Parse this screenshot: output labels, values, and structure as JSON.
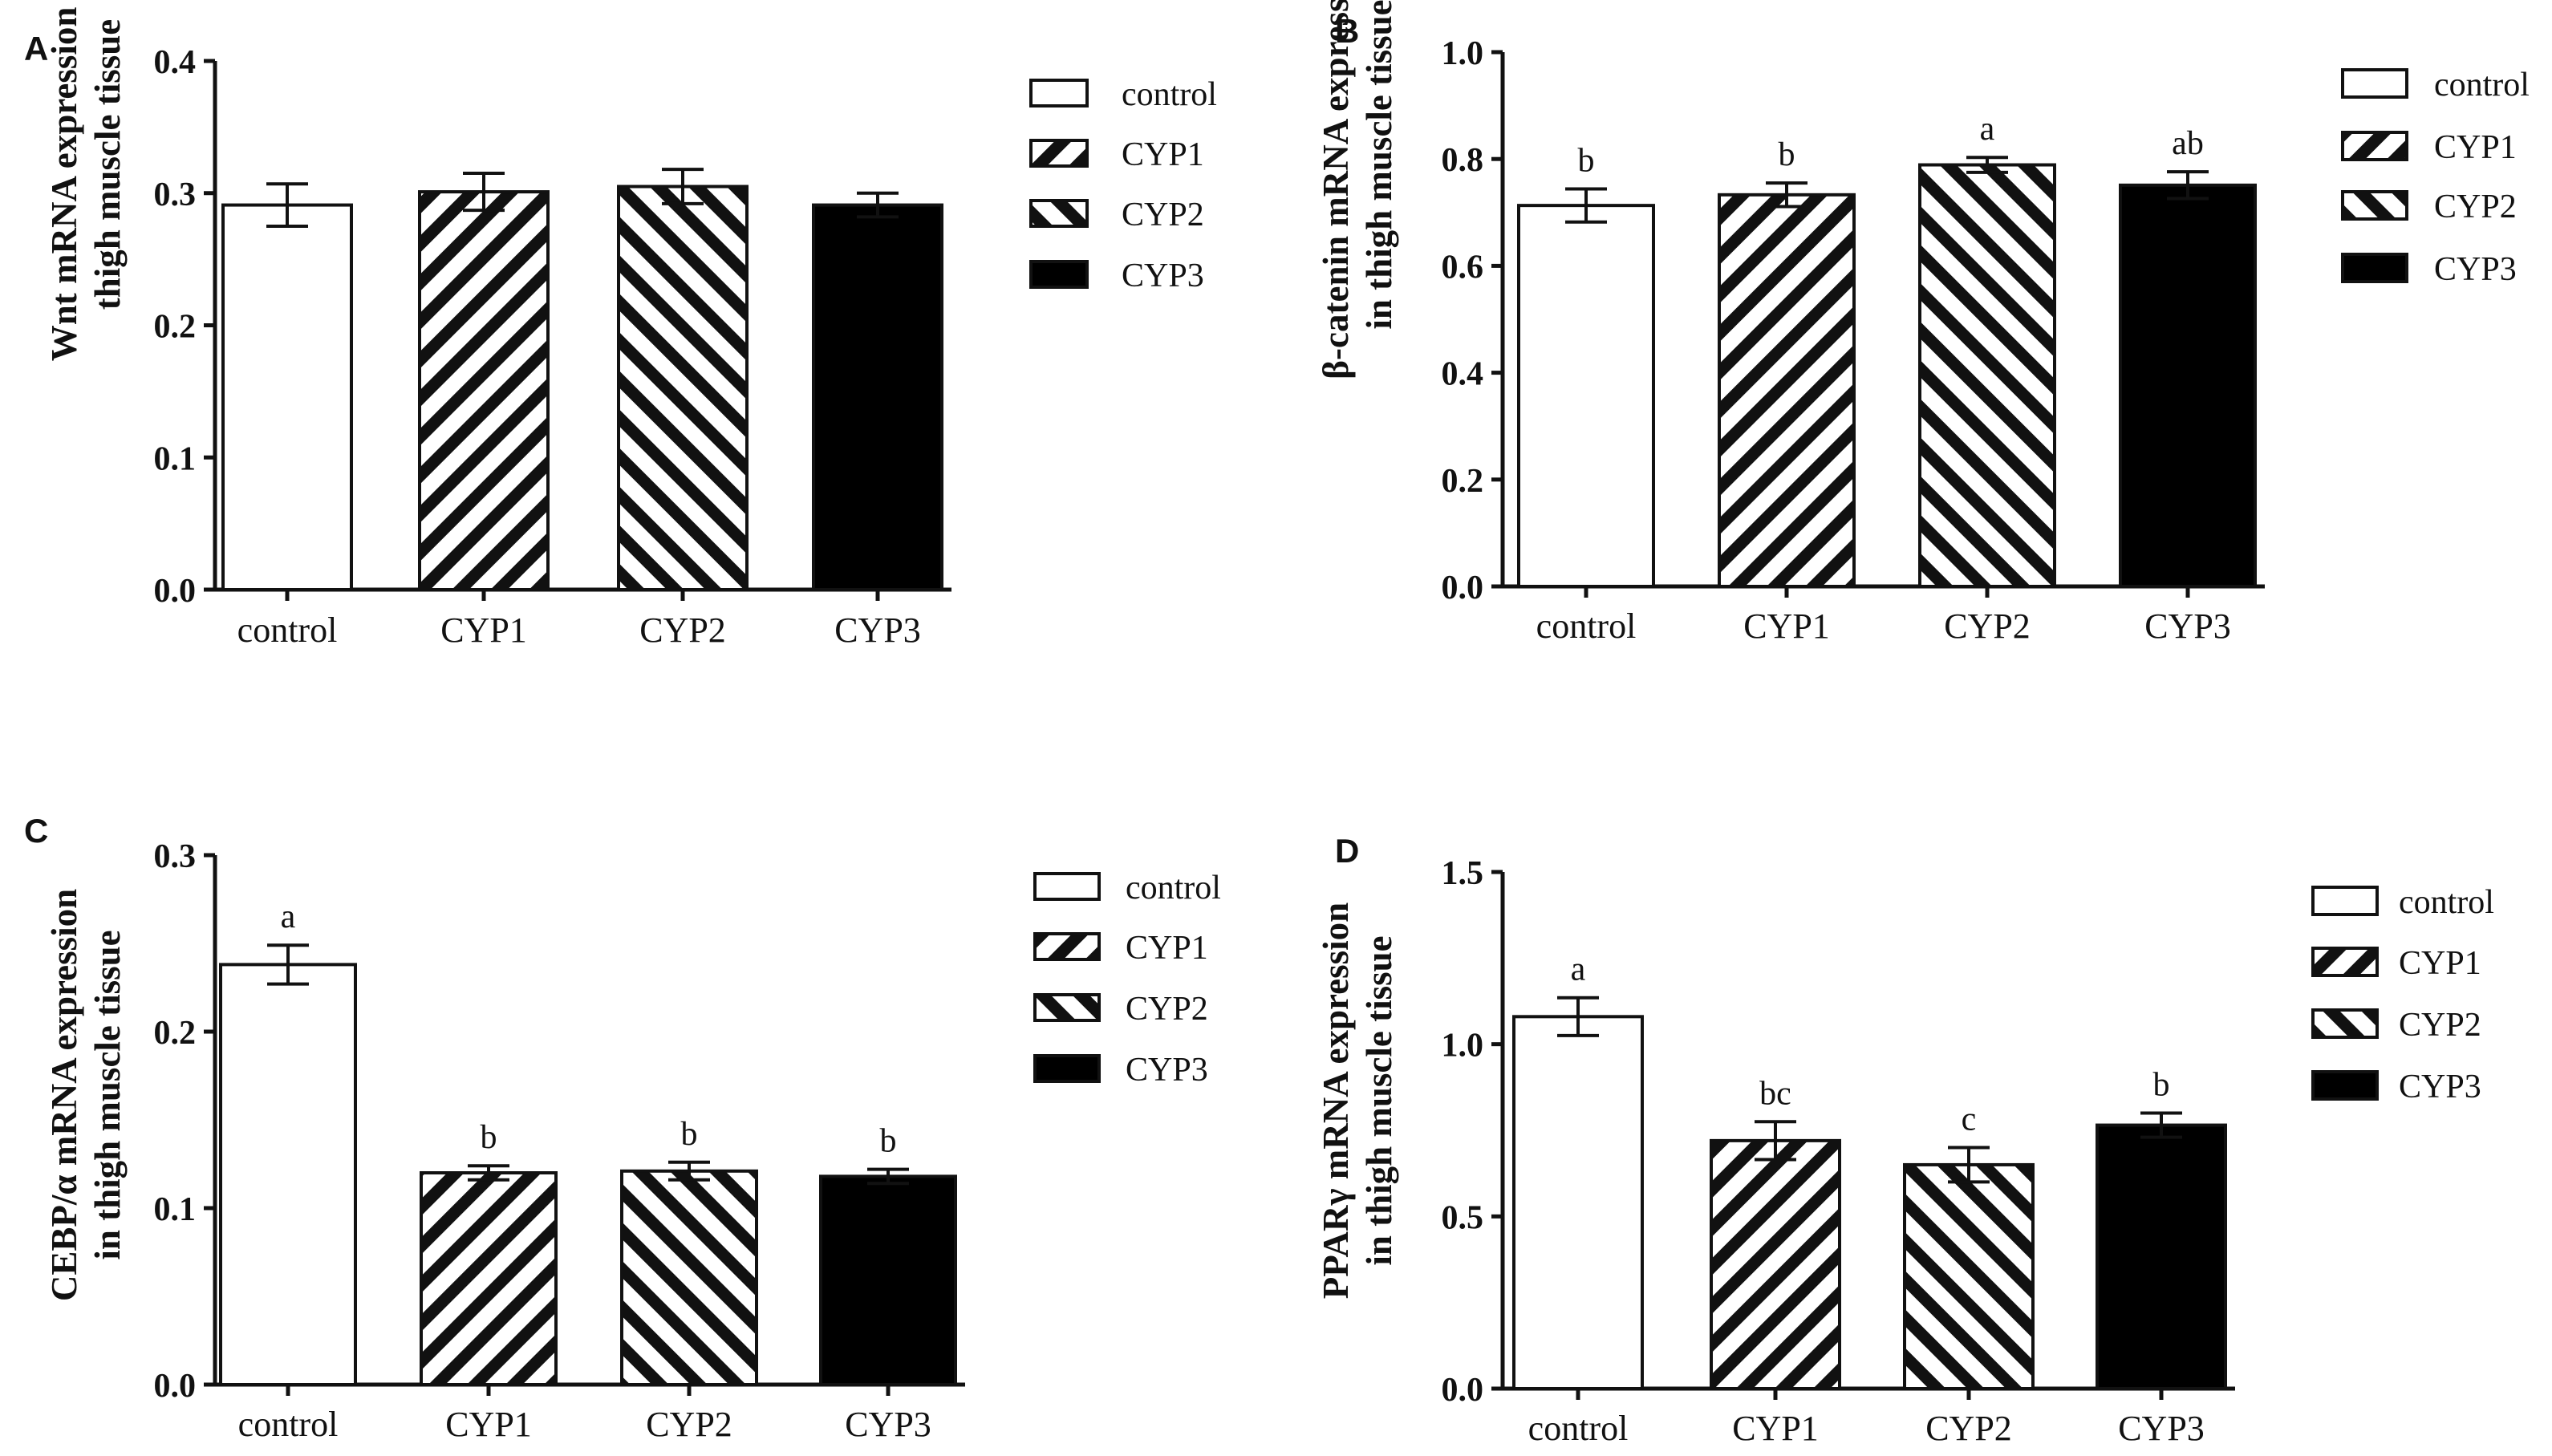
{
  "figure": {
    "colors": {
      "axis": "#111111",
      "background": "#ffffff",
      "bar_stroke": "#111111",
      "bar_fill_solid": "#000000",
      "bar_fill_open": "#ffffff"
    }
  },
  "chart_data": [
    {
      "panel_label": "A",
      "type": "bar",
      "title": "",
      "xlabel": "",
      "ylabel_lines": [
        "Wnt mRNA expression in",
        "thigh muscle tissue"
      ],
      "categories": [
        "control",
        "CYP1",
        "CYP2",
        "CYP3"
      ],
      "values": [
        0.291,
        0.301,
        0.305,
        0.291
      ],
      "errors": [
        0.016,
        0.014,
        0.013,
        0.009
      ],
      "significance": [
        "",
        "",
        "",
        ""
      ],
      "patterns": [
        "open",
        "hatch-forward",
        "hatch-back",
        "solid"
      ],
      "ylim": [
        0,
        0.4
      ],
      "yticks": [
        0.0,
        0.1,
        0.2,
        0.3,
        0.4
      ],
      "ytick_labels": [
        "0.0",
        "0.1",
        "0.2",
        "0.3",
        "0.4"
      ],
      "legend": [
        "control",
        "CYP1",
        "CYP2",
        "CYP3"
      ],
      "legend_position": "right"
    },
    {
      "panel_label": "B",
      "type": "bar",
      "title": "",
      "xlabel": "",
      "ylabel_lines": [
        "β-catenin mRNA expression",
        "in thigh muscle tissue"
      ],
      "categories": [
        "control",
        "CYP1",
        "CYP2",
        "CYP3"
      ],
      "values": [
        0.713,
        0.733,
        0.789,
        0.751
      ],
      "errors": [
        0.031,
        0.022,
        0.014,
        0.025
      ],
      "significance": [
        "b",
        "b",
        "a",
        "ab"
      ],
      "patterns": [
        "open",
        "hatch-forward",
        "hatch-back",
        "solid"
      ],
      "ylim": [
        0,
        1.0
      ],
      "yticks": [
        0.0,
        0.2,
        0.4,
        0.6,
        0.8,
        1.0
      ],
      "ytick_labels": [
        "0.0",
        "0.2",
        "0.4",
        "0.6",
        "0.8",
        "1.0"
      ],
      "legend": [
        "control",
        "CYP1",
        "CYP2",
        "CYP3"
      ],
      "legend_position": "right"
    },
    {
      "panel_label": "C",
      "type": "bar",
      "title": "",
      "xlabel": "",
      "ylabel_lines": [
        "CEBP/α mRNA expression",
        "in thigh muscle tissue"
      ],
      "categories": [
        "control",
        "CYP1",
        "CYP2",
        "CYP3"
      ],
      "values": [
        0.238,
        0.12,
        0.121,
        0.118
      ],
      "errors": [
        0.011,
        0.004,
        0.005,
        0.004
      ],
      "significance": [
        "a",
        "b",
        "b",
        "b"
      ],
      "patterns": [
        "open",
        "hatch-forward",
        "hatch-back",
        "solid"
      ],
      "ylim": [
        0,
        0.3
      ],
      "yticks": [
        0.0,
        0.1,
        0.2,
        0.3
      ],
      "ytick_labels": [
        "0.0",
        "0.1",
        "0.2",
        "0.3"
      ],
      "legend": [
        "control",
        "CYP1",
        "CYP2",
        "CYP3"
      ],
      "legend_position": "right"
    },
    {
      "panel_label": "D",
      "type": "bar",
      "title": "",
      "xlabel": "",
      "ylabel_lines": [
        "PPARγ mRNA expression",
        "in thigh muscle tissue"
      ],
      "categories": [
        "control",
        "CYP1",
        "CYP2",
        "CYP3"
      ],
      "values": [
        1.08,
        0.72,
        0.65,
        0.765
      ],
      "errors": [
        0.055,
        0.055,
        0.05,
        0.035
      ],
      "significance": [
        "a",
        "bc",
        "c",
        "b"
      ],
      "patterns": [
        "open",
        "hatch-forward",
        "hatch-back",
        "solid"
      ],
      "ylim": [
        0,
        1.5
      ],
      "yticks": [
        0.0,
        0.5,
        1.0,
        1.5
      ],
      "ytick_labels": [
        "0.0",
        "0.5",
        "1.0",
        "1.5"
      ],
      "legend": [
        "control",
        "CYP1",
        "CYP2",
        "CYP3"
      ],
      "legend_position": "right"
    }
  ]
}
